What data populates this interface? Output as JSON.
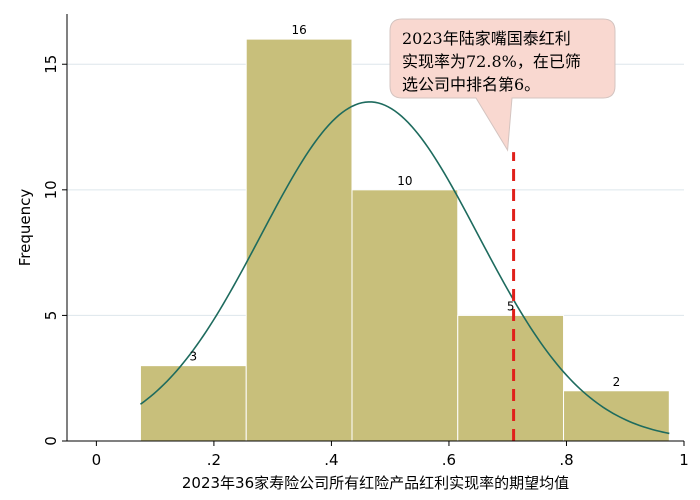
{
  "chart_data": {
    "type": "bar",
    "subtype": "histogram with normal density overlay",
    "xlabel": "2023年36家寿险公司所有红险产品红利实现率的期望均值",
    "ylabel": "Frequency",
    "xlim": [
      -0.05,
      1.0
    ],
    "ylim": [
      0,
      17
    ],
    "xticks": [
      "0",
      ".2",
      ".4",
      ".6",
      ".8",
      "1"
    ],
    "xtick_values": [
      0,
      0.2,
      0.4,
      0.6,
      0.8,
      1.0
    ],
    "yticks": [
      "0",
      "5",
      "10",
      "15"
    ],
    "ytick_values": [
      0,
      5,
      10,
      15
    ],
    "bins": [
      {
        "start": 0.075,
        "end": 0.255,
        "count": 3,
        "label": "3"
      },
      {
        "start": 0.255,
        "end": 0.435,
        "count": 16,
        "label": "16"
      },
      {
        "start": 0.435,
        "end": 0.615,
        "count": 10,
        "label": "10"
      },
      {
        "start": 0.615,
        "end": 0.795,
        "count": 5,
        "label": "5"
      },
      {
        "start": 0.795,
        "end": 0.975,
        "count": 2,
        "label": "2"
      }
    ],
    "normal_curve": {
      "mean": 0.465,
      "sd": 0.185,
      "peak": 13.5,
      "x_range": [
        0.075,
        0.975
      ]
    },
    "reference_line": {
      "x": 0.71,
      "y_range": [
        0,
        11.5
      ],
      "color": "#e0201b",
      "style": "dashed"
    },
    "annotation": {
      "lines": [
        "2023年陆家嘴国泰红利",
        "实现率为72.8%，在已筛",
        "选公司中排名第6。"
      ],
      "box_fill": "#f9d8d0"
    },
    "grid": "horizontal",
    "colors": {
      "bar_fill": "#c8bf7b",
      "bar_stroke": "#ffffff",
      "curve": "#1e6b5e",
      "grid": "#dde6ec",
      "axis": "#000000"
    }
  }
}
